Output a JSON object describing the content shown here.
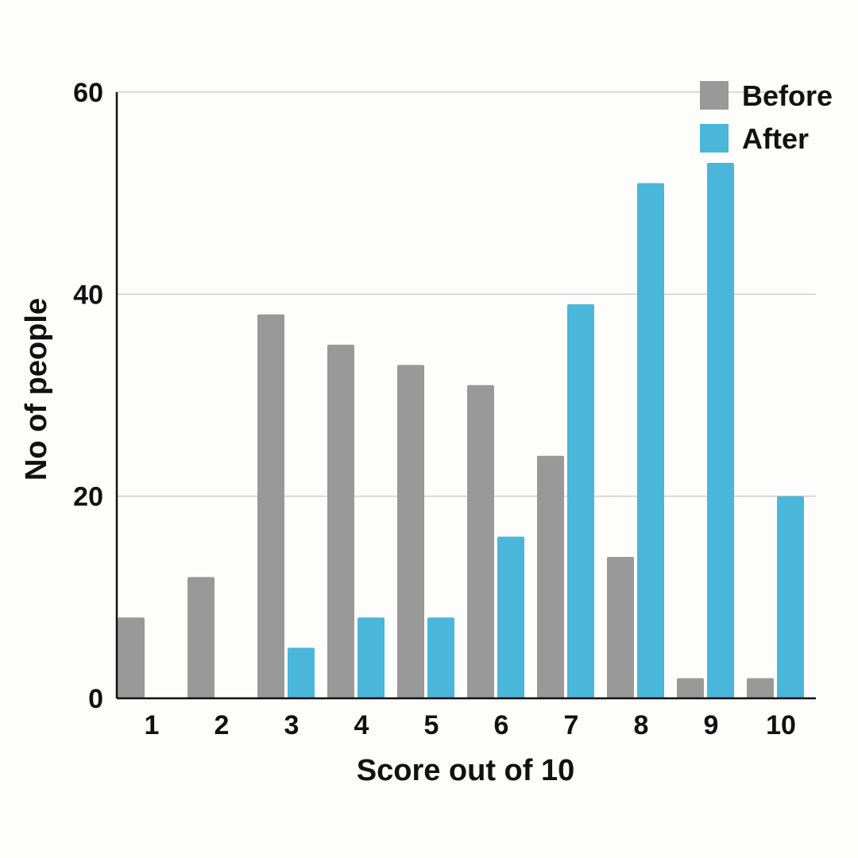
{
  "chart_data": {
    "type": "bar",
    "title": "",
    "xlabel": "Score out of 10",
    "ylabel": "No of people",
    "categories": [
      "1",
      "2",
      "3",
      "4",
      "5",
      "6",
      "7",
      "8",
      "9",
      "10"
    ],
    "series": [
      {
        "name": "Before",
        "color": "#999999",
        "values": [
          8,
          12,
          38,
          35,
          33,
          31,
          24,
          14,
          2,
          2
        ]
      },
      {
        "name": "After",
        "color": "#4ab6da",
        "values": [
          0,
          0,
          5,
          8,
          8,
          16,
          39,
          51,
          53,
          20
        ]
      }
    ],
    "ylim": [
      0,
      60
    ],
    "yticks": [
      0,
      20,
      40,
      60
    ],
    "grid": true,
    "legend_position": "top-right"
  }
}
